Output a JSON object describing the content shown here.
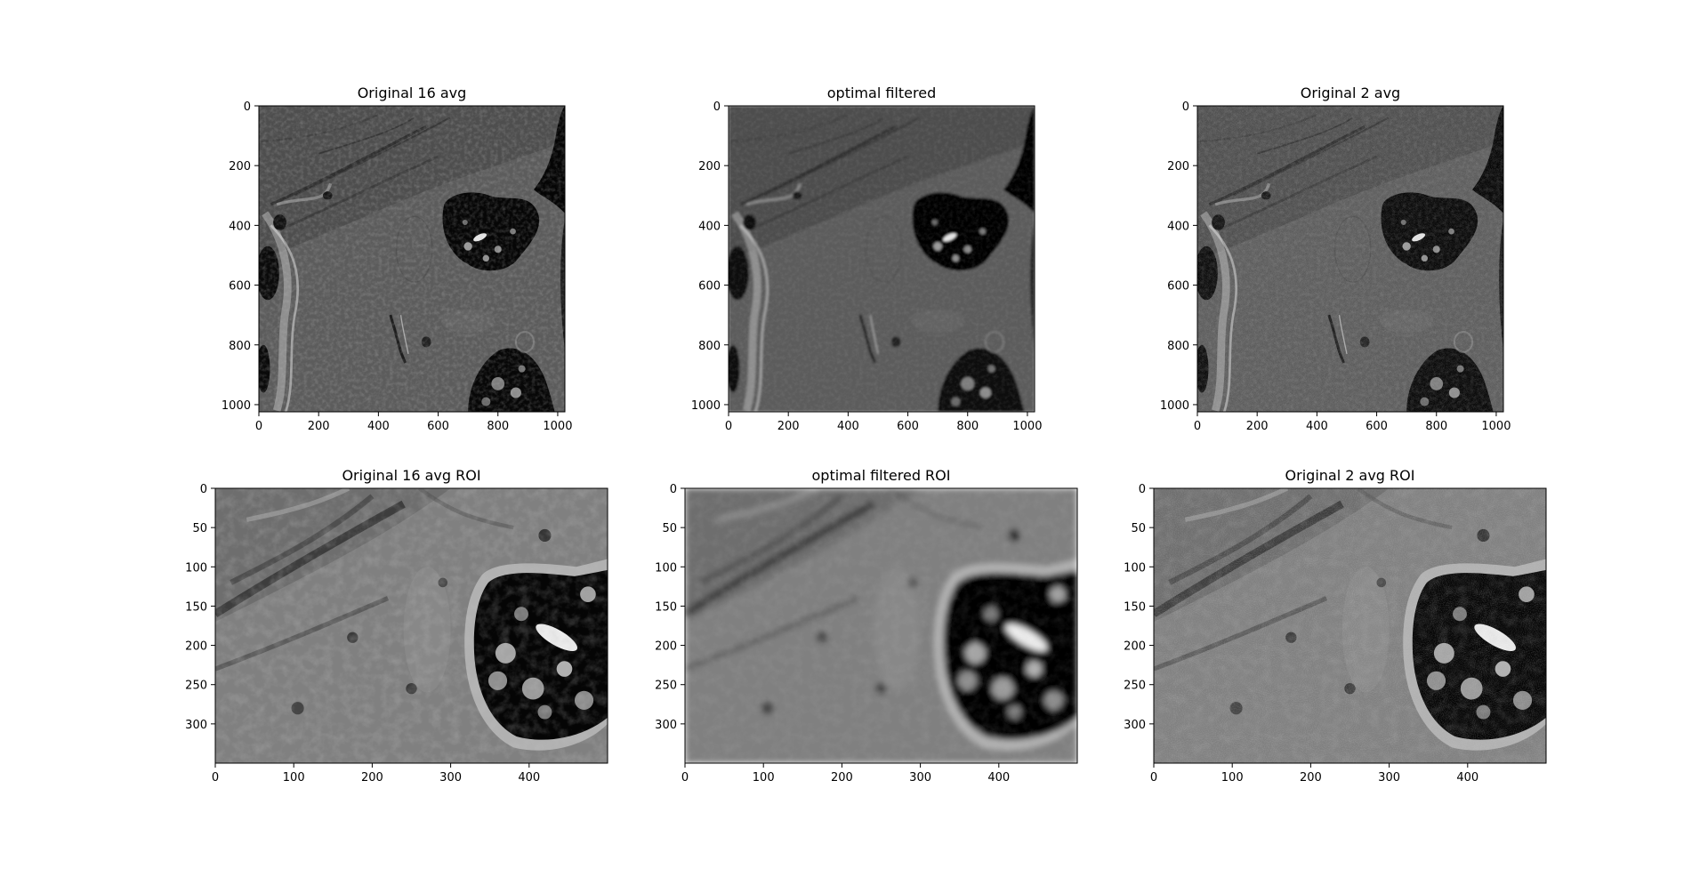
{
  "figure": {
    "background": "#ffffff",
    "colormap": "gray",
    "panels": [
      {
        "id": "orig16",
        "title": "Original 16 avg",
        "xticks": [
          "0",
          "200",
          "400",
          "600",
          "800",
          "1000"
        ],
        "yticks": [
          "0",
          "200",
          "400",
          "600",
          "800",
          "1000"
        ],
        "xrange": [
          0,
          1024
        ],
        "yrange": [
          0,
          1024
        ]
      },
      {
        "id": "optimal",
        "title": "optimal filtered",
        "xticks": [
          "0",
          "200",
          "400",
          "600",
          "800",
          "1000"
        ],
        "yticks": [
          "0",
          "200",
          "400",
          "600",
          "800",
          "1000"
        ],
        "xrange": [
          0,
          1024
        ],
        "yrange": [
          0,
          1024
        ]
      },
      {
        "id": "orig2",
        "title": "Original 2 avg",
        "xticks": [
          "0",
          "200",
          "400",
          "600",
          "800",
          "1000"
        ],
        "yticks": [
          "0",
          "200",
          "400",
          "600",
          "800",
          "1000"
        ],
        "xrange": [
          0,
          1024
        ],
        "yrange": [
          0,
          1024
        ]
      },
      {
        "id": "orig16roi",
        "title": "Original 16 avg ROI",
        "xticks": [
          "0",
          "100",
          "200",
          "300",
          "400"
        ],
        "yticks": [
          "0",
          "50",
          "100",
          "150",
          "200",
          "250",
          "300"
        ],
        "xrange": [
          0,
          500
        ],
        "yrange": [
          0,
          350
        ]
      },
      {
        "id": "optimalroi",
        "title": "optimal filtered ROI",
        "xticks": [
          "0",
          "100",
          "200",
          "300",
          "400"
        ],
        "yticks": [
          "0",
          "50",
          "100",
          "150",
          "200",
          "250",
          "300"
        ],
        "xrange": [
          0,
          500
        ],
        "yrange": [
          0,
          350
        ]
      },
      {
        "id": "orig2roi",
        "title": "Original 2 avg ROI",
        "xticks": [
          "0",
          "100",
          "200",
          "300",
          "400"
        ],
        "yticks": [
          "0",
          "50",
          "100",
          "150",
          "200",
          "250",
          "300"
        ],
        "xrange": [
          0,
          500
        ],
        "yrange": [
          0,
          350
        ]
      }
    ]
  }
}
